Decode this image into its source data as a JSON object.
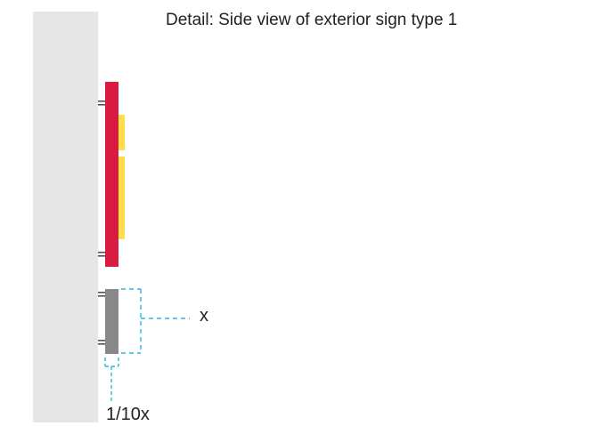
{
  "title": "Detail: Side view of exterior sign type 1",
  "dimension_labels": {
    "sign_height": "x",
    "offset": "1/10x"
  },
  "colors": {
    "wall": "#e5e6e5",
    "sign_panel": "#d91a43",
    "sign_face": "#fde048",
    "small_sign": "#88888b",
    "mount_hardware": "#555555",
    "dimension_line": "#2cb6dc"
  }
}
